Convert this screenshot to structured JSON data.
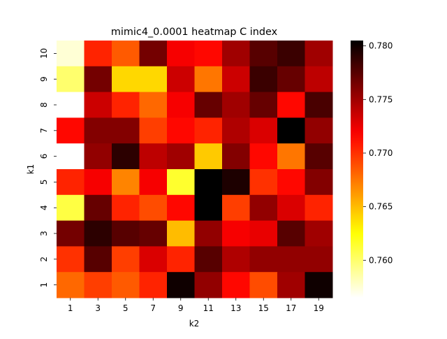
{
  "chart_data": {
    "type": "heatmap",
    "title": "mimic4_0.0001 heatmap C index",
    "xlabel": "k2",
    "ylabel": "k1",
    "x_categories": [
      "1",
      "3",
      "5",
      "7",
      "9",
      "11",
      "13",
      "15",
      "17",
      "19"
    ],
    "y_categories": [
      "10",
      "9",
      "8",
      "7",
      "6",
      "5",
      "4",
      "3",
      "2",
      "1"
    ],
    "values": [
      [
        0.7575,
        0.7705,
        0.7685,
        0.7765,
        0.772,
        0.7715,
        0.775,
        0.7775,
        0.7785,
        0.775
      ],
      [
        0.76,
        0.7765,
        0.764,
        0.764,
        0.7735,
        0.7675,
        0.7735,
        0.7785,
        0.777,
        0.774
      ],
      [
        0.7565,
        0.7735,
        0.7705,
        0.768,
        0.772,
        0.777,
        0.775,
        0.777,
        0.7715,
        0.778
      ],
      [
        0.7715,
        0.776,
        0.776,
        0.7695,
        0.7715,
        0.7705,
        0.7745,
        0.773,
        0.7805,
        0.7755
      ],
      [
        0.7565,
        0.7755,
        0.779,
        0.774,
        0.775,
        0.7645,
        0.776,
        0.7715,
        0.7675,
        0.7775
      ],
      [
        0.7705,
        0.772,
        0.767,
        0.772,
        0.7615,
        0.7805,
        0.7795,
        0.77,
        0.7715,
        0.776
      ],
      [
        0.761,
        0.777,
        0.7705,
        0.769,
        0.7715,
        0.7805,
        0.7695,
        0.7755,
        0.773,
        0.7705
      ],
      [
        0.7765,
        0.779,
        0.7775,
        0.777,
        0.765,
        0.7755,
        0.772,
        0.7725,
        0.7775,
        0.775
      ],
      [
        0.77,
        0.7775,
        0.7695,
        0.773,
        0.7705,
        0.7775,
        0.7745,
        0.7755,
        0.7755,
        0.7755
      ],
      [
        0.768,
        0.7695,
        0.7685,
        0.7705,
        0.78,
        0.7755,
        0.7715,
        0.769,
        0.775,
        0.78
      ]
    ],
    "colormap": "hot_r",
    "vmin": 0.7565,
    "vmax": 0.7805,
    "colorbar_ticks": [
      "0.760",
      "0.765",
      "0.770",
      "0.775",
      "0.780"
    ],
    "colorbar_tick_values": [
      0.76,
      0.765,
      0.77,
      0.775,
      0.78
    ],
    "grid": false,
    "legend": "colorbar-right"
  }
}
